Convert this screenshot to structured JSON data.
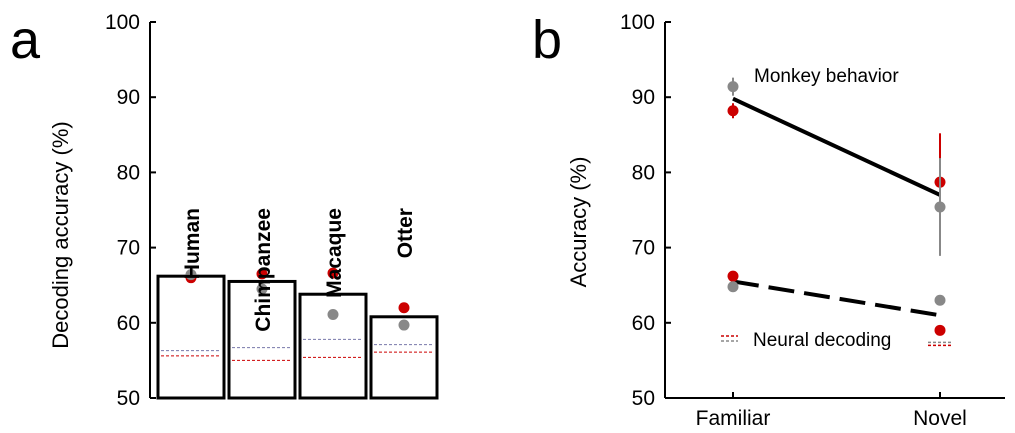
{
  "chart_data": [
    {
      "panel_label": "a",
      "type": "bar",
      "ylabel": "Decoding accuracy (%)",
      "ylim": [
        50,
        100
      ],
      "yticks": [
        50,
        60,
        70,
        80,
        90,
        100
      ],
      "categories": [
        "Human",
        "Chimpanzee",
        "Macaque",
        "Otter"
      ],
      "bar_values": [
        66.2,
        65.5,
        63.8,
        60.8
      ],
      "series": [
        {
          "values": [
            66.0,
            66.5,
            66.6,
            62.0
          ],
          "color": "#cc0000"
        },
        {
          "values": [
            66.4,
            64.5,
            61.1,
            59.7
          ],
          "color": "#888888"
        }
      ],
      "chance_lines": [
        {
          "values": [
            55.6,
            55.0,
            55.4,
            56.1
          ],
          "color": "#cc0000",
          "style": "dashed"
        },
        {
          "values": [
            56.3,
            56.7,
            57.8,
            57.1
          ],
          "color": "#7777aa",
          "style": "dashed"
        }
      ]
    },
    {
      "panel_label": "b",
      "type": "line",
      "ylabel": "Accuracy (%)",
      "ylim": [
        50,
        100
      ],
      "yticks": [
        50,
        60,
        70,
        80,
        90,
        100
      ],
      "categories": [
        "Familiar",
        "Novel"
      ],
      "series": [
        {
          "name": "Monkey behavior",
          "line_values": [
            89.8,
            77.0
          ],
          "line_style": "solid",
          "points": [
            {
              "values": [
                88.2,
                78.7
              ],
              "err": [
                1.0,
                6.5
              ],
              "color": "#cc0000"
            },
            {
              "values": [
                91.4,
                75.4
              ],
              "err": [
                1.2,
                6.5
              ],
              "color": "#888888"
            }
          ]
        },
        {
          "name": "Neural decoding",
          "line_values": [
            65.5,
            61.0
          ],
          "line_style": "dashed",
          "points": [
            {
              "values": [
                66.2,
                59.0
              ],
              "err": [
                0,
                0
              ],
              "color": "#cc0000"
            },
            {
              "values": [
                64.8,
                63.0
              ],
              "err": [
                0,
                0
              ],
              "color": "#888888"
            }
          ]
        }
      ],
      "chance_lines": [
        {
          "values": [
            null,
            57.0
          ],
          "color": "#cc0000",
          "style": "dashed"
        },
        {
          "values": [
            null,
            57.4
          ],
          "color": "#888888",
          "style": "dashed"
        }
      ],
      "legend_colors": [
        "#cc0000",
        "#888888"
      ]
    }
  ]
}
